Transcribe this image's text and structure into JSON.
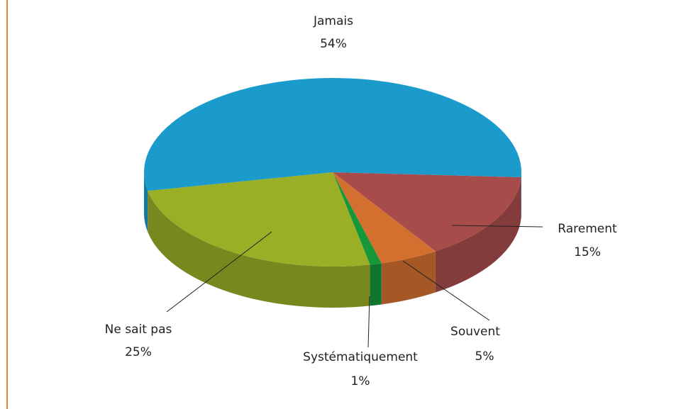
{
  "chart_data": {
    "type": "pie",
    "categories": [
      "Rarement",
      "Souvent",
      "Systématiquement",
      "Ne sait pas",
      "Jamais"
    ],
    "values": [
      15,
      5,
      1,
      25,
      54
    ],
    "value_labels": [
      "15%",
      "5%",
      "1%",
      "25%",
      "54%"
    ],
    "colors": [
      "#a84b4b",
      "#d4702f",
      "#16973a",
      "#9aae26",
      "#1a9bcb"
    ]
  }
}
